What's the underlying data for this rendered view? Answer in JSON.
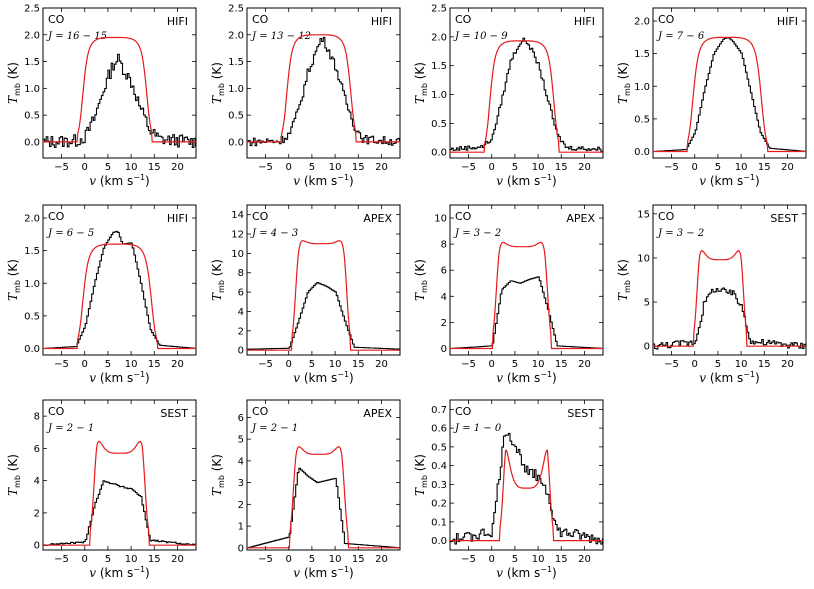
{
  "figure": {
    "xlabel_var": "v",
    "xlabel_unit": "(km s",
    "xlabel_exp": "−1",
    "xlabel_close": ")",
    "ylabel_var": "T",
    "ylabel_sub": "mb",
    "ylabel_unit": "(K)"
  },
  "colors": {
    "observed": "#000000",
    "model": "#e8191c"
  },
  "chart_data": [
    {
      "type": "line",
      "molecule": "CO",
      "transition": "J = 16 − 15",
      "telescope": "HIFI",
      "xlim": [
        -9,
        24
      ],
      "ylim": [
        -0.3,
        2.5
      ],
      "xticks": [
        -5,
        0,
        5,
        10,
        15,
        20
      ],
      "yticks": [
        0.0,
        0.5,
        1.0,
        1.5,
        2.0,
        2.5
      ],
      "model_peak": 1.95,
      "model_type": "flat",
      "obs_peak": 1.5,
      "noise": 0.12,
      "series": [
        {
          "role": "observed",
          "x": [
            -9,
            -2,
            0,
            2,
            4,
            6,
            7,
            8,
            10,
            12,
            14,
            16,
            24
          ],
          "y": [
            0.0,
            0.02,
            0.1,
            0.45,
            1.0,
            1.45,
            1.55,
            1.4,
            1.1,
            0.6,
            0.2,
            0.05,
            0.0
          ]
        },
        {
          "role": "model",
          "center": 6.5,
          "halfwidth": 7,
          "peak": 1.95
        }
      ]
    },
    {
      "type": "line",
      "molecule": "CO",
      "transition": "J = 13 − 12",
      "telescope": "HIFI",
      "xlim": [
        -9,
        24
      ],
      "ylim": [
        -0.3,
        2.5
      ],
      "xticks": [
        -5,
        0,
        5,
        10,
        15,
        20
      ],
      "yticks": [
        0.0,
        0.5,
        1.0,
        1.5,
        2.0,
        2.5
      ],
      "model_peak": 2.0,
      "model_type": "flat",
      "obs_peak": 1.85,
      "noise": 0.08,
      "series": [
        {
          "role": "observed",
          "x": [
            -9,
            -2,
            0,
            2,
            4,
            6,
            7,
            8,
            10,
            12,
            14,
            16,
            24
          ],
          "y": [
            0.0,
            0.02,
            0.15,
            0.6,
            1.3,
            1.75,
            1.95,
            1.8,
            1.4,
            0.8,
            0.3,
            0.05,
            0.0
          ]
        },
        {
          "role": "model",
          "center": 6.5,
          "halfwidth": 7,
          "peak": 2.0
        }
      ]
    },
    {
      "type": "line",
      "molecule": "CO",
      "transition": "J = 10 − 9",
      "telescope": "HIFI",
      "xlim": [
        -9,
        24
      ],
      "ylim": [
        -0.1,
        2.5
      ],
      "xticks": [
        -5,
        0,
        5,
        10,
        15,
        20
      ],
      "yticks": [
        0.0,
        0.5,
        1.0,
        1.5,
        2.0,
        2.5
      ],
      "model_peak": 1.93,
      "model_type": "flat",
      "obs_peak": 1.9,
      "noise": 0.04,
      "series": [
        {
          "role": "observed",
          "x": [
            -9,
            -2,
            0,
            2,
            4,
            6,
            7,
            8,
            10,
            12,
            14,
            16,
            24
          ],
          "y": [
            0.05,
            0.1,
            0.25,
            0.9,
            1.6,
            1.9,
            1.95,
            1.85,
            1.5,
            0.9,
            0.3,
            0.08,
            0.05
          ]
        },
        {
          "role": "model",
          "center": 6.5,
          "halfwidth": 7,
          "peak": 1.93
        }
      ]
    },
    {
      "type": "line",
      "molecule": "CO",
      "transition": "J = 7 − 6",
      "telescope": "HIFI",
      "xlim": [
        -9,
        24
      ],
      "ylim": [
        -0.1,
        2.2
      ],
      "xticks": [
        -5,
        0,
        5,
        10,
        15,
        20
      ],
      "yticks": [
        0.0,
        0.5,
        1.0,
        1.5,
        2.0
      ],
      "model_peak": 1.75,
      "model_type": "flat",
      "obs_peak": 1.75,
      "noise": 0.0,
      "series": [
        {
          "role": "observed",
          "x": [
            -9,
            -2,
            0,
            2,
            4,
            6,
            7,
            8,
            10,
            12,
            14,
            16,
            24
          ],
          "y": [
            0.0,
            0.03,
            0.3,
            0.95,
            1.5,
            1.72,
            1.75,
            1.7,
            1.5,
            0.9,
            0.3,
            0.05,
            0.0
          ]
        },
        {
          "role": "model",
          "center": 7,
          "halfwidth": 7.5,
          "peak": 1.75
        }
      ]
    },
    {
      "type": "line",
      "molecule": "CO",
      "transition": "J = 6 − 5",
      "telescope": "HIFI",
      "xlim": [
        -9,
        24
      ],
      "ylim": [
        -0.1,
        2.2
      ],
      "xticks": [
        -5,
        0,
        5,
        10,
        15,
        20
      ],
      "yticks": [
        0.0,
        0.5,
        1.0,
        1.5,
        2.0
      ],
      "model_peak": 1.6,
      "model_type": "flat",
      "obs_peak": 1.8,
      "noise": 0.0,
      "series": [
        {
          "role": "observed",
          "x": [
            -9,
            -2,
            0,
            2,
            4,
            6,
            7,
            8,
            10,
            12,
            14,
            16,
            24
          ],
          "y": [
            0.0,
            0.03,
            0.35,
            1.0,
            1.55,
            1.78,
            1.8,
            1.6,
            1.62,
            1.0,
            0.3,
            0.05,
            0.0
          ]
        },
        {
          "role": "model",
          "center": 7,
          "halfwidth": 7.5,
          "peak": 1.6
        }
      ]
    },
    {
      "type": "line",
      "molecule": "CO",
      "transition": "J = 4 − 3",
      "telescope": "APEX",
      "xlim": [
        -9,
        24
      ],
      "ylim": [
        -0.5,
        15
      ],
      "xticks": [
        -5,
        0,
        5,
        10,
        15,
        20
      ],
      "yticks": [
        0,
        2,
        4,
        6,
        8,
        10,
        12,
        14
      ],
      "model_peak": 12.3,
      "model_type": "horned",
      "obs_peak": 7.0,
      "noise": 0.0,
      "series": [
        {
          "role": "observed",
          "x": [
            -9,
            0,
            2,
            4,
            6,
            8,
            10,
            12,
            14,
            24
          ],
          "y": [
            0.1,
            0.2,
            3.0,
            6.0,
            7.0,
            6.6,
            6.0,
            3.0,
            0.3,
            0.1
          ]
        },
        {
          "role": "model",
          "center": 7,
          "halfwidth": 5.5,
          "peak": 12.3,
          "dip": 11.0
        }
      ]
    },
    {
      "type": "line",
      "molecule": "CO",
      "transition": "J = 3 − 2",
      "telescope": "APEX",
      "xlim": [
        -9,
        24
      ],
      "ylim": [
        -0.5,
        11
      ],
      "xticks": [
        -5,
        0,
        5,
        10,
        15,
        20
      ],
      "yticks": [
        0,
        2,
        4,
        6,
        8,
        10
      ],
      "model_peak": 9.0,
      "model_type": "horned",
      "obs_peak": 5.5,
      "noise": 0.0,
      "series": [
        {
          "role": "observed",
          "x": [
            -9,
            0,
            2,
            4,
            6,
            8,
            10,
            12,
            14,
            24
          ],
          "y": [
            0.0,
            0.2,
            4.5,
            5.2,
            5.0,
            5.3,
            5.5,
            3.0,
            0.2,
            0.0
          ]
        },
        {
          "role": "model",
          "center": 6.5,
          "halfwidth": 5.5,
          "peak": 9.0,
          "dip": 7.8
        }
      ]
    },
    {
      "type": "line",
      "molecule": "CO",
      "transition": "J = 3 − 2",
      "telescope": "SEST",
      "xlim": [
        -9,
        24
      ],
      "ylim": [
        -1,
        16
      ],
      "xticks": [
        -5,
        0,
        5,
        10,
        15,
        20
      ],
      "yticks": [
        0,
        5,
        10,
        15
      ],
      "model_peak": 12.5,
      "model_type": "horned",
      "obs_peak": 6.5,
      "noise": 0.4,
      "series": [
        {
          "role": "observed",
          "x": [
            -9,
            0,
            2,
            4,
            6,
            8,
            10,
            12,
            24
          ],
          "y": [
            0.0,
            0.5,
            5.0,
            6.5,
            6.2,
            6.0,
            4.5,
            0.5,
            0.0
          ]
        },
        {
          "role": "model",
          "center": 5.5,
          "halfwidth": 5,
          "peak": 12.5,
          "dip": 9.8
        }
      ]
    },
    {
      "type": "line",
      "molecule": "CO",
      "transition": "J = 2 − 1",
      "telescope": "SEST",
      "xlim": [
        -9,
        24
      ],
      "ylim": [
        -0.3,
        9
      ],
      "xticks": [
        -5,
        0,
        5,
        10,
        15,
        20
      ],
      "yticks": [
        0,
        2,
        4,
        6,
        8
      ],
      "model_peak": 7.5,
      "model_type": "horned",
      "obs_peak": 4.0,
      "noise": 0.05,
      "series": [
        {
          "role": "observed",
          "x": [
            -9,
            0,
            2,
            4,
            6,
            8,
            10,
            12,
            14,
            24
          ],
          "y": [
            0.0,
            0.2,
            2.5,
            4.0,
            3.8,
            3.6,
            3.5,
            3.0,
            0.3,
            0.0
          ]
        },
        {
          "role": "model",
          "center": 7.5,
          "halfwidth": 5.5,
          "peak": 7.5,
          "dip": 5.7
        }
      ]
    },
    {
      "type": "line",
      "molecule": "CO",
      "transition": "J = 2 − 1",
      "telescope": "APEX",
      "xlim": [
        -9,
        24
      ],
      "ylim": [
        -0.1,
        6.8
      ],
      "xticks": [
        -5,
        0,
        5,
        10,
        15,
        20
      ],
      "yticks": [
        0,
        1,
        2,
        3,
        4,
        5,
        6
      ],
      "model_peak": 5.3,
      "model_type": "horned",
      "obs_peak": 3.7,
      "noise": 0.0,
      "series": [
        {
          "role": "observed",
          "x": [
            -9,
            0,
            2,
            4,
            6,
            8,
            10,
            12,
            24
          ],
          "y": [
            0.0,
            0.5,
            3.7,
            3.3,
            3.0,
            3.1,
            3.2,
            0.2,
            0.0
          ]
        },
        {
          "role": "model",
          "center": 6.5,
          "halfwidth": 5.5,
          "peak": 5.3,
          "dip": 4.3
        }
      ]
    },
    {
      "type": "line",
      "molecule": "CO",
      "transition": "J = 1 − 0",
      "telescope": "SEST",
      "xlim": [
        -9,
        24
      ],
      "ylim": [
        -0.05,
        0.75
      ],
      "xticks": [
        -5,
        0,
        5,
        10,
        15,
        20
      ],
      "yticks": [
        0.0,
        0.1,
        0.2,
        0.3,
        0.4,
        0.5,
        0.6,
        0.7
      ],
      "model_peak": 0.6,
      "model_type": "horned",
      "obs_peak": 0.6,
      "noise": 0.03,
      "series": [
        {
          "role": "observed",
          "x": [
            -9,
            0,
            2,
            3,
            4,
            6,
            8,
            10,
            12,
            14,
            24
          ],
          "y": [
            0.0,
            0.05,
            0.45,
            0.6,
            0.55,
            0.45,
            0.35,
            0.35,
            0.25,
            0.05,
            0.0
          ]
        },
        {
          "role": "model",
          "center": 7.5,
          "halfwidth": 5,
          "peak": 0.6,
          "dip": 0.28
        }
      ]
    }
  ]
}
